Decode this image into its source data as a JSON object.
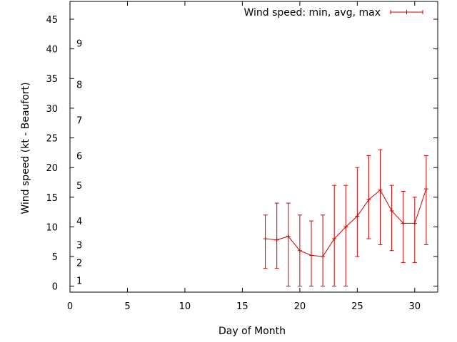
{
  "chart_data": {
    "type": "line",
    "title": "",
    "xlabel": "Day of Month",
    "ylabel": "Wind speed (kt - Beaufort)",
    "xlim": [
      0,
      32
    ],
    "ylim": [
      -1,
      48
    ],
    "xticks": [
      0,
      5,
      10,
      15,
      20,
      25,
      30
    ],
    "yticks": [
      0,
      5,
      10,
      15,
      20,
      25,
      30,
      35,
      40,
      45
    ],
    "grid": false,
    "legend_position": "top-right",
    "beaufort_labels": [
      {
        "label": "1",
        "value": 1
      },
      {
        "label": "2",
        "value": 4
      },
      {
        "label": "3",
        "value": 7
      },
      {
        "label": "4",
        "value": 11
      },
      {
        "label": "5",
        "value": 17
      },
      {
        "label": "6",
        "value": 22
      },
      {
        "label": "7",
        "value": 28
      },
      {
        "label": "8",
        "value": 34
      },
      {
        "label": "9",
        "value": 41
      }
    ],
    "series": [
      {
        "name": "Wind speed: min, avg, max",
        "color": "#d40000",
        "x": [
          17,
          18,
          19,
          20,
          21,
          22,
          23,
          24,
          25,
          26,
          27,
          28,
          29,
          30,
          31
        ],
        "avg": [
          8,
          7.8,
          8.4,
          6,
          5.2,
          5,
          8,
          10,
          11.8,
          14.6,
          16.2,
          12.7,
          10.6,
          10.6,
          16.4
        ],
        "min": [
          3,
          3,
          0,
          0,
          0,
          0,
          0,
          0,
          5,
          8,
          7,
          6,
          4,
          4,
          7
        ],
        "max": [
          12,
          14,
          14,
          12,
          11,
          12,
          17,
          17,
          20,
          22,
          23,
          17,
          16,
          15,
          22
        ]
      }
    ]
  }
}
